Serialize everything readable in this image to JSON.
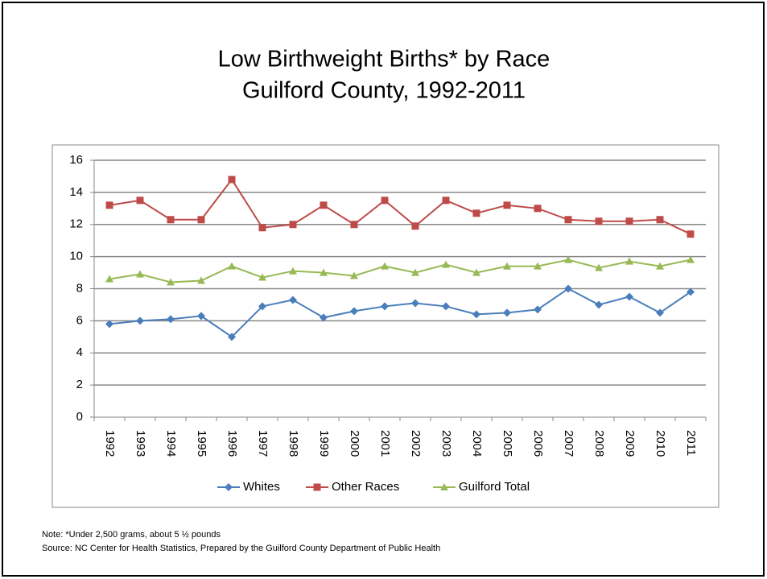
{
  "chart_data": {
    "type": "line",
    "title": "Low Birthweight Births* by Race",
    "subtitle": "Guilford County, 1992-2011",
    "categories": [
      "1992",
      "1993",
      "1994",
      "1995",
      "1996",
      "1997",
      "1998",
      "1999",
      "2000",
      "2001",
      "2002",
      "2003",
      "2004",
      "2005",
      "2006",
      "2007",
      "2008",
      "2009",
      "2010",
      "2011"
    ],
    "series": [
      {
        "name": "Whites",
        "color": "#4a7ebb",
        "marker": "diamond",
        "values": [
          5.8,
          6.0,
          6.1,
          6.3,
          5.0,
          6.9,
          7.3,
          6.2,
          6.6,
          6.9,
          7.1,
          6.9,
          6.4,
          6.5,
          6.7,
          8.0,
          7.0,
          7.5,
          6.5,
          7.8
        ]
      },
      {
        "name": "Other Races",
        "color": "#be4b48",
        "marker": "square",
        "values": [
          13.2,
          13.5,
          12.3,
          12.3,
          14.8,
          11.8,
          12.0,
          13.2,
          12.0,
          13.5,
          11.9,
          13.5,
          12.7,
          13.2,
          13.0,
          12.3,
          12.2,
          12.2,
          12.3,
          11.4
        ]
      },
      {
        "name": "Guilford Total",
        "color": "#98b954",
        "marker": "triangle",
        "values": [
          8.6,
          8.9,
          8.4,
          8.5,
          9.4,
          8.7,
          9.1,
          9.0,
          8.8,
          9.4,
          9.0,
          9.5,
          9.0,
          9.4,
          9.4,
          9.8,
          9.3,
          9.7,
          9.4,
          9.8
        ]
      }
    ],
    "ylim": [
      0,
      16
    ],
    "yticks": [
      0,
      2,
      4,
      6,
      8,
      10,
      12,
      14,
      16
    ],
    "grid": true,
    "legend": "bottom",
    "note": "Note: *Under 2,500  grams, about  5 ½ pounds",
    "source": "Source:  NC Center for Health Statistics, Prepared by the Guilford County  Department  of Public Health"
  }
}
